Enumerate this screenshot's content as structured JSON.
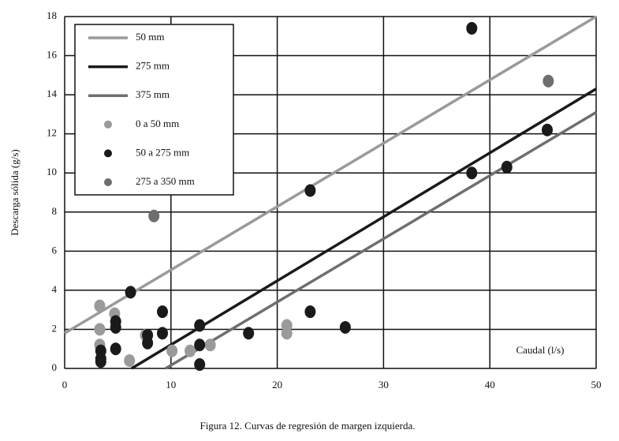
{
  "chart_data": {
    "type": "combo",
    "caption": "Figura 12. Curvas de regresión de margen izquierda.",
    "ylabel": "Descarga sólida (g/s)",
    "annotation": "Caudal (l/s)",
    "xlim": [
      0,
      50
    ],
    "ylim": [
      0,
      18
    ],
    "xticks": [
      0,
      10,
      20,
      30,
      40,
      50
    ],
    "yticks": [
      0,
      2,
      4,
      6,
      8,
      10,
      12,
      14,
      16,
      18
    ],
    "grid": true,
    "legend": "upper left",
    "series": [
      {
        "name": "50 mm",
        "type": "line",
        "color": "#9a9a9a",
        "x": [
          0,
          50
        ],
        "values": [
          1.8,
          18
        ]
      },
      {
        "name": "275 mm",
        "type": "line",
        "color": "#1a1a1a",
        "x": [
          6.3,
          50
        ],
        "values": [
          0,
          14.3
        ]
      },
      {
        "name": "375 mm",
        "type": "line",
        "color": "#6e6e6e",
        "x": [
          9.5,
          50
        ],
        "values": [
          0,
          13.1
        ]
      },
      {
        "name": "0 a 50 mm",
        "type": "scatter",
        "color": "#9a9a9a",
        "x": [
          3.3,
          3.3,
          3.3,
          4.7,
          6.1,
          7.6,
          10.1,
          11.8,
          13.7,
          20.9,
          20.9
        ],
        "values": [
          3.2,
          2.0,
          1.2,
          2.8,
          0.4,
          1.7,
          0.9,
          0.9,
          1.2,
          2.2,
          1.8
        ]
      },
      {
        "name": "50 a 275 mm",
        "type": "scatter",
        "color": "#1a1a1a",
        "x": [
          6.2,
          9.2,
          9.2,
          4.8,
          4.8,
          4.8,
          3.4,
          3.4,
          3.4,
          7.8,
          7.8,
          12.7,
          12.7,
          12.7,
          17.3,
          23.1,
          23.1,
          26.4,
          38.3,
          38.3,
          41.6,
          45.4
        ],
        "values": [
          3.9,
          2.9,
          1.8,
          2.4,
          2.1,
          1.0,
          0.9,
          0.5,
          0.35,
          1.7,
          1.3,
          2.2,
          1.2,
          0.2,
          1.8,
          2.9,
          9.1,
          2.1,
          17.4,
          10.0,
          10.3,
          12.2
        ]
      },
      {
        "name": "275 a 350 mm",
        "type": "scatter",
        "color": "#6e6e6e",
        "x": [
          8.4,
          45.5
        ],
        "values": [
          7.8,
          14.7
        ]
      }
    ]
  }
}
